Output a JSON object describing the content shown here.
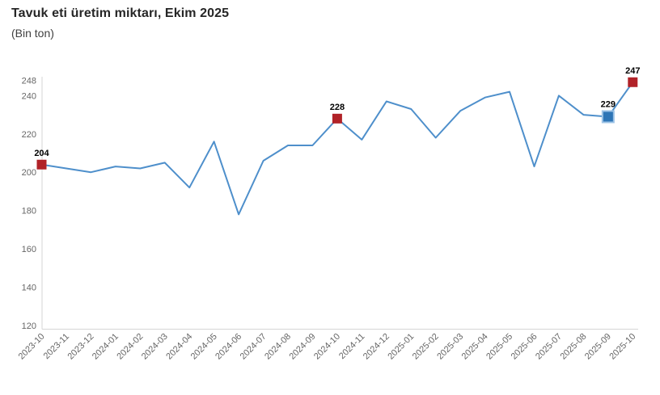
{
  "header": {
    "title": "Tavuk eti üretim miktarı, Ekim 2025",
    "subtitle": "(Bin ton)"
  },
  "chart_data": {
    "type": "line",
    "title": "Tavuk eti üretim miktarı, Ekim 2025",
    "subtitle": "(Bin ton)",
    "xlabel": "",
    "ylabel": "",
    "legend": "none",
    "grid": false,
    "ylim": [
      120,
      248
    ],
    "yticks": [
      248,
      240,
      220,
      200,
      180,
      160,
      140,
      120
    ],
    "x": [
      "2023-10",
      "2023-11",
      "2023-12",
      "2024-01",
      "2024-02",
      "2024-03",
      "2024-04",
      "2024-05",
      "2024-06",
      "2024-07",
      "2024-08",
      "2024-09",
      "2024-10",
      "2024-11",
      "2024-12",
      "2025-01",
      "2025-02",
      "2025-03",
      "2025-04",
      "2025-05",
      "2025-06",
      "2025-07",
      "2025-08",
      "2025-09",
      "2025-10"
    ],
    "series": [
      {
        "name": "Tavuk eti üretim miktarı (bin ton)",
        "values": [
          204,
          202,
          200,
          203,
          202,
          205,
          192,
          216,
          178,
          206,
          214,
          214,
          228,
          217,
          237,
          233,
          218,
          232,
          239,
          242,
          203,
          240,
          230,
          229,
          247
        ]
      }
    ],
    "annotations": [
      {
        "month": "2023-10",
        "value": 204,
        "label": "204",
        "marker": "square",
        "color": "#B12228"
      },
      {
        "month": "2024-10",
        "value": 228,
        "label": "228",
        "marker": "square",
        "color": "#B12228"
      },
      {
        "month": "2025-09",
        "value": 229,
        "label": "229",
        "marker": "square-highlighted",
        "color": "#2E75B6"
      },
      {
        "month": "2025-10",
        "value": 247,
        "label": "247",
        "marker": "square",
        "color": "#B12228"
      }
    ],
    "colors": {
      "line": "#4E8FCB",
      "axis_line": "#D6D6D6",
      "tick_label": "#666666",
      "data_label": "#000000",
      "marker_halo": "#9DC3E6"
    }
  }
}
